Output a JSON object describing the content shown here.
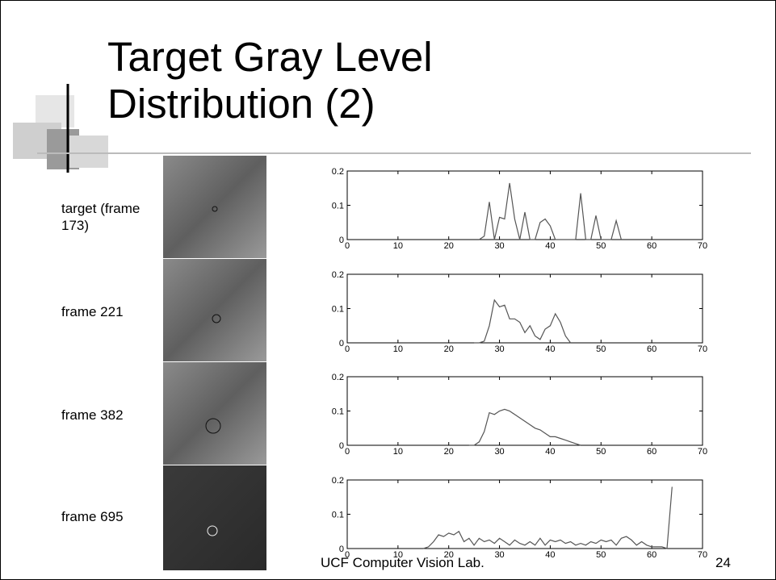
{
  "title": "Target Gray Level Distribution (2)",
  "rows": [
    {
      "label": "target (frame 173)"
    },
    {
      "label": "frame 221"
    },
    {
      "label": "frame 382"
    },
    {
      "label": "frame 695"
    }
  ],
  "footer": "UCF Computer Vision Lab.",
  "page_number": "24",
  "chart_data": [
    {
      "type": "line",
      "color": "#555555",
      "xlim": [
        0,
        70
      ],
      "xticks": [
        0,
        10,
        20,
        30,
        40,
        50,
        60,
        70
      ],
      "ylim": [
        0,
        0.2
      ],
      "yticks": [
        0,
        0.1,
        0.2
      ],
      "x": [
        26,
        27,
        28,
        29,
        30,
        31,
        32,
        33,
        34,
        35,
        36,
        37,
        38,
        39,
        40,
        41,
        42,
        43,
        44,
        45,
        46,
        47,
        48,
        49,
        50,
        51,
        52,
        53,
        54
      ],
      "values": [
        0,
        0.01,
        0.11,
        0,
        0.065,
        0.06,
        0.165,
        0.06,
        0,
        0.08,
        0,
        0,
        0.05,
        0.06,
        0.04,
        0,
        0,
        0,
        0,
        0,
        0.135,
        0,
        0,
        0.07,
        0,
        0,
        0,
        0.055,
        0
      ]
    },
    {
      "type": "line",
      "color": "#555555",
      "xlim": [
        0,
        70
      ],
      "xticks": [
        0,
        10,
        20,
        30,
        40,
        50,
        60,
        70
      ],
      "ylim": [
        0,
        0.2
      ],
      "yticks": [
        0,
        0.1,
        0.2
      ],
      "x": [
        25,
        26,
        27,
        28,
        29,
        30,
        31,
        32,
        33,
        34,
        35,
        36,
        37,
        38,
        39,
        40,
        41,
        42,
        43,
        44
      ],
      "values": [
        0,
        0,
        0.005,
        0.05,
        0.125,
        0.105,
        0.11,
        0.07,
        0.07,
        0.06,
        0.03,
        0.05,
        0.02,
        0.01,
        0.04,
        0.05,
        0.085,
        0.06,
        0.02,
        0
      ]
    },
    {
      "type": "line",
      "color": "#555555",
      "xlim": [
        0,
        70
      ],
      "xticks": [
        0,
        10,
        20,
        30,
        40,
        50,
        60,
        70
      ],
      "ylim": [
        0,
        0.2
      ],
      "yticks": [
        0,
        0.1,
        0.2
      ],
      "x": [
        24,
        25,
        26,
        27,
        28,
        29,
        30,
        31,
        32,
        33,
        34,
        35,
        36,
        37,
        38,
        39,
        40,
        41,
        42,
        43,
        44,
        45,
        46
      ],
      "values": [
        0,
        0,
        0.01,
        0.04,
        0.095,
        0.09,
        0.1,
        0.105,
        0.1,
        0.09,
        0.08,
        0.07,
        0.06,
        0.05,
        0.045,
        0.035,
        0.025,
        0.025,
        0.02,
        0.015,
        0.01,
        0.005,
        0
      ]
    },
    {
      "type": "line",
      "color": "#555555",
      "xlim": [
        0,
        70
      ],
      "xticks": [
        0,
        10,
        20,
        30,
        40,
        50,
        60,
        70
      ],
      "ylim": [
        0,
        0.2
      ],
      "yticks": [
        0,
        0.1,
        0.2
      ],
      "x": [
        15,
        16,
        17,
        18,
        19,
        20,
        21,
        22,
        23,
        24,
        25,
        26,
        27,
        28,
        29,
        30,
        31,
        32,
        33,
        34,
        35,
        36,
        37,
        38,
        39,
        40,
        41,
        42,
        43,
        44,
        45,
        46,
        47,
        48,
        49,
        50,
        51,
        52,
        53,
        54,
        55,
        56,
        57,
        58,
        59,
        60,
        61,
        62,
        63,
        64
      ],
      "values": [
        0,
        0.005,
        0.02,
        0.04,
        0.035,
        0.045,
        0.04,
        0.05,
        0.02,
        0.03,
        0.01,
        0.03,
        0.02,
        0.025,
        0.015,
        0.03,
        0.02,
        0.01,
        0.025,
        0.015,
        0.01,
        0.02,
        0.01,
        0.03,
        0.01,
        0.025,
        0.02,
        0.025,
        0.015,
        0.02,
        0.01,
        0.015,
        0.01,
        0.02,
        0.015,
        0.025,
        0.02,
        0.025,
        0.01,
        0.03,
        0.035,
        0.025,
        0.01,
        0.02,
        0.01,
        0.005,
        0.005,
        0.005,
        0,
        0.18
      ]
    }
  ]
}
